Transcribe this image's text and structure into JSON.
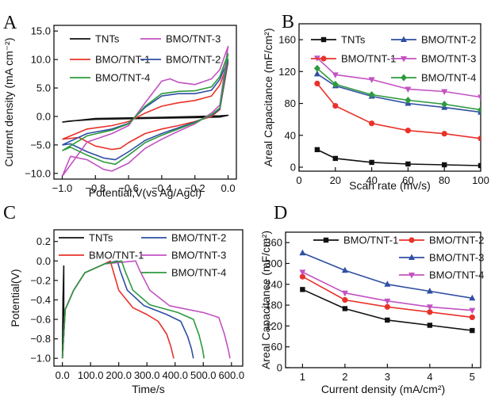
{
  "chart_data": [
    {
      "panel": "A",
      "type": "line",
      "xlabel": "Potential,V(vs Ag/Agcl)",
      "ylabel": "Current density (mA cm⁻²)",
      "xlim": [
        -1.05,
        0.05
      ],
      "ylim": [
        -11,
        16
      ],
      "xticks": [
        -1.0,
        -0.8,
        -0.6,
        -0.4,
        -0.2,
        0.0
      ],
      "yticks": [
        -10,
        -5,
        0,
        5,
        10,
        15
      ],
      "legend": "top",
      "series": [
        {
          "name": "TNTs",
          "color": "#111111",
          "x": [
            -1.0,
            -0.8,
            -0.6,
            -0.4,
            -0.2,
            -0.05,
            0.0,
            -0.05,
            -0.2,
            -0.4,
            -0.6,
            -0.8,
            -0.95,
            -1.0
          ],
          "y": [
            -1.0,
            -0.35,
            -0.25,
            -0.15,
            0.0,
            0.1,
            0.2,
            -0.1,
            -0.2,
            -0.3,
            -0.4,
            -0.5,
            -0.8,
            -1.0
          ]
        },
        {
          "name": "BMO/TNT-1",
          "color": "#e8322a",
          "x": [
            -1.0,
            -0.85,
            -0.7,
            -0.6,
            -0.5,
            -0.4,
            -0.3,
            -0.2,
            -0.1,
            -0.05,
            0.0,
            -0.05,
            -0.1,
            -0.2,
            -0.3,
            -0.4,
            -0.5,
            -0.6,
            -0.65,
            -0.7,
            -0.8,
            -0.9,
            -1.0
          ],
          "y": [
            -4.0,
            -2.2,
            -1.6,
            -0.9,
            0.6,
            1.8,
            2.4,
            2.8,
            3.6,
            5.5,
            9.5,
            1.2,
            0.0,
            -0.9,
            -1.6,
            -2.2,
            -3.0,
            -4.6,
            -5.6,
            -5.8,
            -5.2,
            -3.7,
            -4.0
          ]
        },
        {
          "name": "BMO/TNT-2",
          "color": "#2f4fa3",
          "x": [
            -1.0,
            -0.85,
            -0.7,
            -0.6,
            -0.5,
            -0.4,
            -0.3,
            -0.2,
            -0.1,
            -0.05,
            0.0,
            -0.05,
            -0.1,
            -0.2,
            -0.3,
            -0.4,
            -0.5,
            -0.6,
            -0.68,
            -0.75,
            -0.85,
            -0.95,
            -1.0
          ],
          "y": [
            -5.0,
            -3.0,
            -2.2,
            -1.2,
            1.6,
            3.6,
            4.0,
            4.0,
            4.6,
            6.5,
            10.0,
            1.3,
            0.2,
            -1.0,
            -2.0,
            -3.0,
            -4.2,
            -6.2,
            -7.6,
            -7.3,
            -6.2,
            -4.8,
            -5.0
          ]
        },
        {
          "name": "BMO/TNT-3",
          "color": "#c252c2",
          "x": [
            -1.0,
            -0.85,
            -0.7,
            -0.6,
            -0.5,
            -0.4,
            -0.35,
            -0.3,
            -0.2,
            -0.1,
            -0.05,
            0.0,
            -0.05,
            -0.1,
            -0.2,
            -0.3,
            -0.4,
            -0.5,
            -0.6,
            -0.7,
            -0.75,
            -0.85,
            -0.95,
            -1.0
          ],
          "y": [
            -10.5,
            -4.5,
            -3.0,
            -1.6,
            2.4,
            6.2,
            6.6,
            6.0,
            5.6,
            6.6,
            8.2,
            12.3,
            2.0,
            0.6,
            -1.3,
            -2.6,
            -4.0,
            -5.6,
            -8.2,
            -9.6,
            -9.3,
            -7.6,
            -7.0,
            -10.5
          ]
        },
        {
          "name": "BMO/TNT-4",
          "color": "#2e9a3e",
          "x": [
            -1.0,
            -0.85,
            -0.7,
            -0.6,
            -0.5,
            -0.4,
            -0.3,
            -0.2,
            -0.1,
            -0.05,
            0.0,
            -0.05,
            -0.1,
            -0.2,
            -0.3,
            -0.4,
            -0.5,
            -0.6,
            -0.68,
            -0.75,
            -0.85,
            -0.95,
            -1.0
          ],
          "y": [
            -6.0,
            -3.4,
            -2.4,
            -1.3,
            1.8,
            4.0,
            4.4,
            4.5,
            5.2,
            7.0,
            11.0,
            1.5,
            0.3,
            -1.1,
            -2.2,
            -3.3,
            -4.6,
            -6.8,
            -8.4,
            -8.0,
            -6.8,
            -5.4,
            -6.0
          ]
        }
      ]
    },
    {
      "panel": "B",
      "type": "line",
      "xlabel": "Scan rate (mv/s)",
      "ylabel": "Areal Capacitance (mF/cm²)",
      "xlim": [
        0,
        100
      ],
      "ylim": [
        -5,
        180
      ],
      "xticks": [
        0,
        20,
        40,
        60,
        80,
        100
      ],
      "yticks": [
        0,
        40,
        80,
        120,
        160
      ],
      "legend": "top",
      "x": [
        10,
        20,
        40,
        60,
        80,
        100
      ],
      "series": [
        {
          "name": "TNTs",
          "color": "#111111",
          "marker": "square",
          "values": [
            22,
            11,
            6,
            4,
            3,
            2
          ]
        },
        {
          "name": "BMO/TNT-1",
          "color": "#e8322a",
          "marker": "circle",
          "values": [
            105,
            77,
            55,
            46,
            42,
            36
          ]
        },
        {
          "name": "BMO/TNT-2",
          "color": "#2f4fa3",
          "marker": "triangle-up",
          "values": [
            117,
            102,
            89,
            80,
            75,
            69
          ]
        },
        {
          "name": "BMO/TNT-3",
          "color": "#c252c2",
          "marker": "triangle-down",
          "values": [
            137,
            116,
            110,
            98,
            95,
            88
          ]
        },
        {
          "name": "BMO/TNT-4",
          "color": "#2e9a3e",
          "marker": "diamond",
          "values": [
            124,
            104,
            91,
            84,
            79,
            72
          ]
        }
      ]
    },
    {
      "panel": "C",
      "type": "line",
      "xlabel": "Time/s",
      "ylabel": "Potential(V)",
      "xlim": [
        -30,
        640
      ],
      "ylim": [
        -1.08,
        0.32
      ],
      "xticks": [
        0,
        100,
        200,
        300,
        400,
        500,
        600
      ],
      "yticks": [
        -1.0,
        -0.8,
        -0.6,
        -0.4,
        -0.2,
        0.0,
        0.2
      ],
      "legend": "top",
      "series": [
        {
          "name": "TNTs",
          "color": "#111111",
          "x": [
            0,
            2,
            5,
            5,
            3,
            0
          ],
          "y": [
            -1.0,
            -0.4,
            -0.05,
            -0.5,
            -0.8,
            -1.0
          ]
        },
        {
          "name": "BMO/TNT-1",
          "color": "#e8322a",
          "x": [
            0,
            10,
            40,
            80,
            150,
            170,
            180,
            200,
            250,
            300,
            340,
            370,
            385,
            395
          ],
          "y": [
            -1.0,
            -0.5,
            -0.3,
            -0.12,
            -0.03,
            0.0,
            -0.1,
            -0.3,
            -0.48,
            -0.55,
            -0.62,
            -0.75,
            -0.88,
            -1.0
          ]
        },
        {
          "name": "BMO/TNT-2",
          "color": "#2f4fa3",
          "x": [
            0,
            10,
            40,
            80,
            150,
            195,
            205,
            230,
            290,
            370,
            420,
            445,
            458,
            465
          ],
          "y": [
            -1.0,
            -0.5,
            -0.3,
            -0.12,
            -0.03,
            0.0,
            -0.1,
            -0.3,
            -0.46,
            -0.55,
            -0.62,
            -0.78,
            -0.9,
            -1.0
          ]
        },
        {
          "name": "BMO/TNT-3",
          "color": "#c252c2",
          "x": [
            0,
            10,
            40,
            80,
            150,
            260,
            275,
            310,
            380,
            500,
            555,
            575,
            588,
            595
          ],
          "y": [
            -1.0,
            -0.5,
            -0.3,
            -0.12,
            -0.03,
            0.0,
            -0.1,
            -0.3,
            -0.46,
            -0.53,
            -0.58,
            -0.75,
            -0.9,
            -1.0
          ]
        },
        {
          "name": "BMO/TNT-4",
          "color": "#2e9a3e",
          "x": [
            0,
            10,
            40,
            80,
            150,
            210,
            222,
            250,
            310,
            410,
            465,
            485,
            497,
            503
          ],
          "y": [
            -1.0,
            -0.5,
            -0.3,
            -0.12,
            -0.03,
            0.0,
            -0.1,
            -0.3,
            -0.45,
            -0.53,
            -0.6,
            -0.76,
            -0.9,
            -1.0
          ]
        }
      ]
    },
    {
      "panel": "D",
      "type": "line",
      "xlabel": "Current density (mA/cm²)",
      "ylabel": "Areal Capacitance (mF/cm²)",
      "xlim": [
        0.6,
        5.2
      ],
      "ylim": [
        0,
        390
      ],
      "xticks": [
        1,
        2,
        3,
        4,
        5
      ],
      "yticks": [
        0,
        60,
        120,
        180,
        240,
        300,
        360
      ],
      "legend": "top",
      "x": [
        1,
        2,
        3,
        4,
        5
      ],
      "series": [
        {
          "name": "BMO/TNT-1",
          "color": "#111111",
          "marker": "square",
          "values": [
            225,
            170,
            137,
            122,
            107
          ]
        },
        {
          "name": "BMO/TNT-2",
          "color": "#e8322a",
          "marker": "circle",
          "values": [
            262,
            195,
            175,
            160,
            145
          ]
        },
        {
          "name": "BMO/TNT-3",
          "color": "#2f4fa3",
          "marker": "triangle-up",
          "values": [
            330,
            280,
            240,
            220,
            200
          ]
        },
        {
          "name": "BMO/TNT-4",
          "color": "#c252c2",
          "marker": "triangle-down",
          "values": [
            275,
            215,
            192,
            175,
            165
          ]
        }
      ]
    }
  ]
}
